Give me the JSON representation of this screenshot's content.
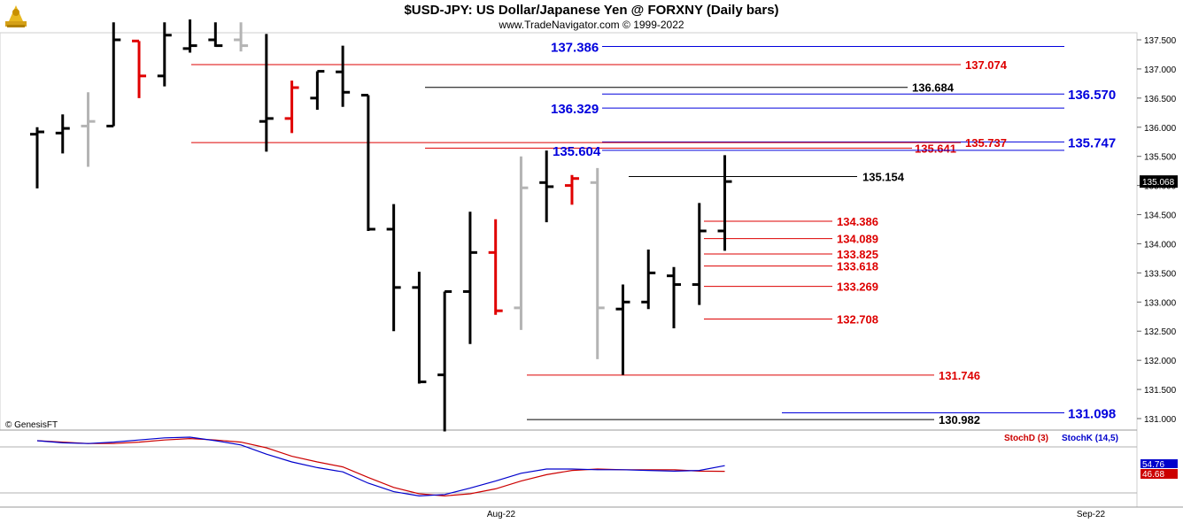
{
  "header": {
    "title": "$USD-JPY:  US Dollar/Japanese Yen @ FORXNY  (Daily bars)",
    "subtitle": "www.TradeNavigator.com © 1999-2022"
  },
  "watermark": "© GenesisFT",
  "colors": {
    "up_bar": "#000000",
    "down_bar": "#e00000",
    "neutral_bar": "#b4b4b4",
    "blue_level": "#0000dd",
    "red_level": "#dd0000",
    "black_level": "#000000",
    "stochD": "#cc0000",
    "stochK": "#0000cc"
  },
  "chart_data": [
    {
      "type": "ohlc",
      "ylim": [
        130.8,
        137.6
      ],
      "y_ticks": [
        "137.500",
        "137.000",
        "136.500",
        "136.000",
        "135.500",
        "135.000",
        "134.500",
        "134.000",
        "133.500",
        "133.000",
        "132.500",
        "132.000",
        "131.500",
        "131.000"
      ],
      "last_price_label": "135.068",
      "x_labels": [
        "Aug-22",
        "Sep-22"
      ],
      "bars": [
        {
          "o": 135.88,
          "h": 136.0,
          "l": 134.95,
          "c": 135.92,
          "color": "black"
        },
        {
          "o": 135.9,
          "h": 136.22,
          "l": 135.55,
          "c": 135.98,
          "color": "black"
        },
        {
          "o": 136.02,
          "h": 136.6,
          "l": 135.32,
          "c": 136.1,
          "color": "gray"
        },
        {
          "o": 136.02,
          "h": 137.8,
          "l": 136.02,
          "c": 137.5,
          "color": "black"
        },
        {
          "o": 137.48,
          "h": 137.48,
          "l": 136.5,
          "c": 136.88,
          "color": "red"
        },
        {
          "o": 136.88,
          "h": 137.8,
          "l": 136.7,
          "c": 137.58,
          "color": "black"
        },
        {
          "o": 137.35,
          "h": 137.85,
          "l": 137.28,
          "c": 137.4,
          "color": "black"
        },
        {
          "o": 137.5,
          "h": 137.8,
          "l": 137.38,
          "c": 137.4,
          "color": "black"
        },
        {
          "o": 137.5,
          "h": 137.8,
          "l": 137.3,
          "c": 137.4,
          "color": "gray"
        },
        {
          "o": 136.1,
          "h": 137.6,
          "l": 135.58,
          "c": 136.15,
          "color": "black"
        },
        {
          "o": 136.15,
          "h": 136.8,
          "l": 135.9,
          "c": 136.68,
          "color": "red"
        },
        {
          "o": 136.5,
          "h": 136.96,
          "l": 136.3,
          "c": 136.96,
          "color": "black"
        },
        {
          "o": 136.95,
          "h": 137.4,
          "l": 136.35,
          "c": 136.6,
          "color": "black"
        },
        {
          "o": 136.55,
          "h": 136.55,
          "l": 134.22,
          "c": 134.25,
          "color": "black"
        },
        {
          "o": 134.25,
          "h": 134.68,
          "l": 132.5,
          "c": 133.25,
          "color": "black"
        },
        {
          "o": 133.25,
          "h": 133.52,
          "l": 131.6,
          "c": 131.63,
          "color": "black"
        },
        {
          "o": 131.75,
          "h": 133.18,
          "l": 130.78,
          "c": 133.18,
          "color": "black"
        },
        {
          "o": 133.18,
          "h": 134.55,
          "l": 132.28,
          "c": 133.85,
          "color": "black"
        },
        {
          "o": 133.85,
          "h": 134.42,
          "l": 132.78,
          "c": 132.85,
          "color": "red"
        },
        {
          "o": 132.9,
          "h": 135.5,
          "l": 132.52,
          "c": 134.96,
          "color": "gray"
        },
        {
          "o": 135.05,
          "h": 135.6,
          "l": 134.37,
          "c": 134.98,
          "color": "black"
        },
        {
          "o": 135.0,
          "h": 135.18,
          "l": 134.67,
          "c": 135.12,
          "color": "red"
        },
        {
          "o": 135.05,
          "h": 135.3,
          "l": 132.02,
          "c": 132.9,
          "color": "gray"
        },
        {
          "o": 132.88,
          "h": 133.3,
          "l": 131.75,
          "c": 133.0,
          "color": "black"
        },
        {
          "o": 133.0,
          "h": 133.9,
          "l": 132.88,
          "c": 133.5,
          "color": "black"
        },
        {
          "o": 133.45,
          "h": 133.6,
          "l": 132.55,
          "c": 133.3,
          "color": "black"
        },
        {
          "o": 133.3,
          "h": 134.7,
          "l": 132.95,
          "c": 134.22,
          "color": "black"
        },
        {
          "o": 134.22,
          "h": 135.52,
          "l": 133.88,
          "c": 135.068,
          "color": "black"
        }
      ],
      "levels": [
        {
          "price": 137.386,
          "label": "137.386",
          "color": "blue",
          "label_side": "left"
        },
        {
          "price": 137.074,
          "label": "137.074",
          "color": "red",
          "label_side": "right"
        },
        {
          "price": 136.684,
          "label": "136.684",
          "color": "black",
          "label_side": "right"
        },
        {
          "price": 136.57,
          "label": "136.570",
          "color": "blue",
          "label_side": "right"
        },
        {
          "price": 136.329,
          "label": "136.329",
          "color": "blue",
          "label_side": "left"
        },
        {
          "price": 135.747,
          "label": "135.747",
          "color": "blue",
          "label_side": "right"
        },
        {
          "price": 135.737,
          "label": "135.737",
          "color": "red",
          "label_side": "right"
        },
        {
          "price": 135.641,
          "label": "135.641",
          "color": "red",
          "label_side": "right"
        },
        {
          "price": 135.604,
          "label": "135.604",
          "color": "blue",
          "label_side": "left"
        },
        {
          "price": 135.154,
          "label": "135.154",
          "color": "black",
          "label_side": "right"
        },
        {
          "price": 134.386,
          "label": "134.386",
          "color": "red",
          "label_side": "right"
        },
        {
          "price": 134.089,
          "label": "134.089",
          "color": "red",
          "label_side": "right"
        },
        {
          "price": 133.825,
          "label": "133.825",
          "color": "red",
          "label_side": "right"
        },
        {
          "price": 133.618,
          "label": "133.618",
          "color": "red",
          "label_side": "right"
        },
        {
          "price": 133.269,
          "label": "133.269",
          "color": "red",
          "label_side": "right"
        },
        {
          "price": 132.708,
          "label": "132.708",
          "color": "red",
          "label_side": "right"
        },
        {
          "price": 131.746,
          "label": "131.746",
          "color": "red",
          "label_side": "right"
        },
        {
          "price": 131.098,
          "label": "131.098",
          "color": "blue",
          "label_side": "right"
        },
        {
          "price": 130.982,
          "label": "130.982",
          "color": "black",
          "label_side": "right"
        }
      ]
    },
    {
      "type": "line",
      "series": [
        {
          "name": "StochD (3)",
          "values": [
            90,
            88,
            86,
            86,
            88,
            91,
            93,
            91,
            88,
            80,
            68,
            60,
            53,
            38,
            24,
            15,
            12,
            15,
            22,
            33,
            42,
            48,
            50,
            49,
            49,
            49,
            47,
            46.68
          ]
        },
        {
          "name": "StochK (14,5)",
          "values": [
            90,
            87,
            86,
            88,
            91,
            94,
            95,
            90,
            84,
            71,
            60,
            52,
            46,
            30,
            18,
            12,
            14,
            23,
            33,
            44,
            50,
            50,
            49,
            49,
            48,
            47,
            48,
            54.76
          ]
        }
      ],
      "value_labels": [
        "54.76",
        "46.68"
      ]
    }
  ]
}
